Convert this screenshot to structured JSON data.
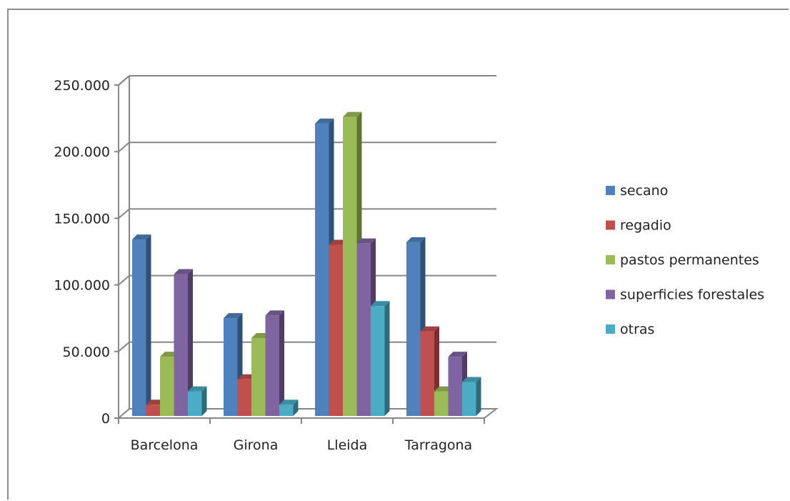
{
  "chart_data": {
    "type": "bar",
    "categories": [
      "Barcelona",
      "Girona",
      "Lleida",
      "Tarragona"
    ],
    "series": [
      {
        "name": "secano",
        "color": "#4F81BD",
        "values": [
          133000,
          74000,
          220000,
          131000
        ]
      },
      {
        "name": "regadio",
        "color": "#C0504D",
        "values": [
          9000,
          28000,
          129000,
          64000
        ]
      },
      {
        "name": "pastos permanentes",
        "color": "#9BBB59",
        "values": [
          45000,
          59000,
          225000,
          19000
        ]
      },
      {
        "name": "superficies forestales",
        "color": "#8064A2",
        "values": [
          107000,
          76000,
          130000,
          45000
        ]
      },
      {
        "name": "otras",
        "color": "#4BACC6",
        "values": [
          19000,
          9000,
          83000,
          26000
        ]
      }
    ],
    "y_ticks": [
      "0",
      "50.000",
      "100.000",
      "150.000",
      "200.000",
      "250.000"
    ],
    "ylim": [
      0,
      250000
    ],
    "grid": true,
    "legend_position": "right"
  }
}
